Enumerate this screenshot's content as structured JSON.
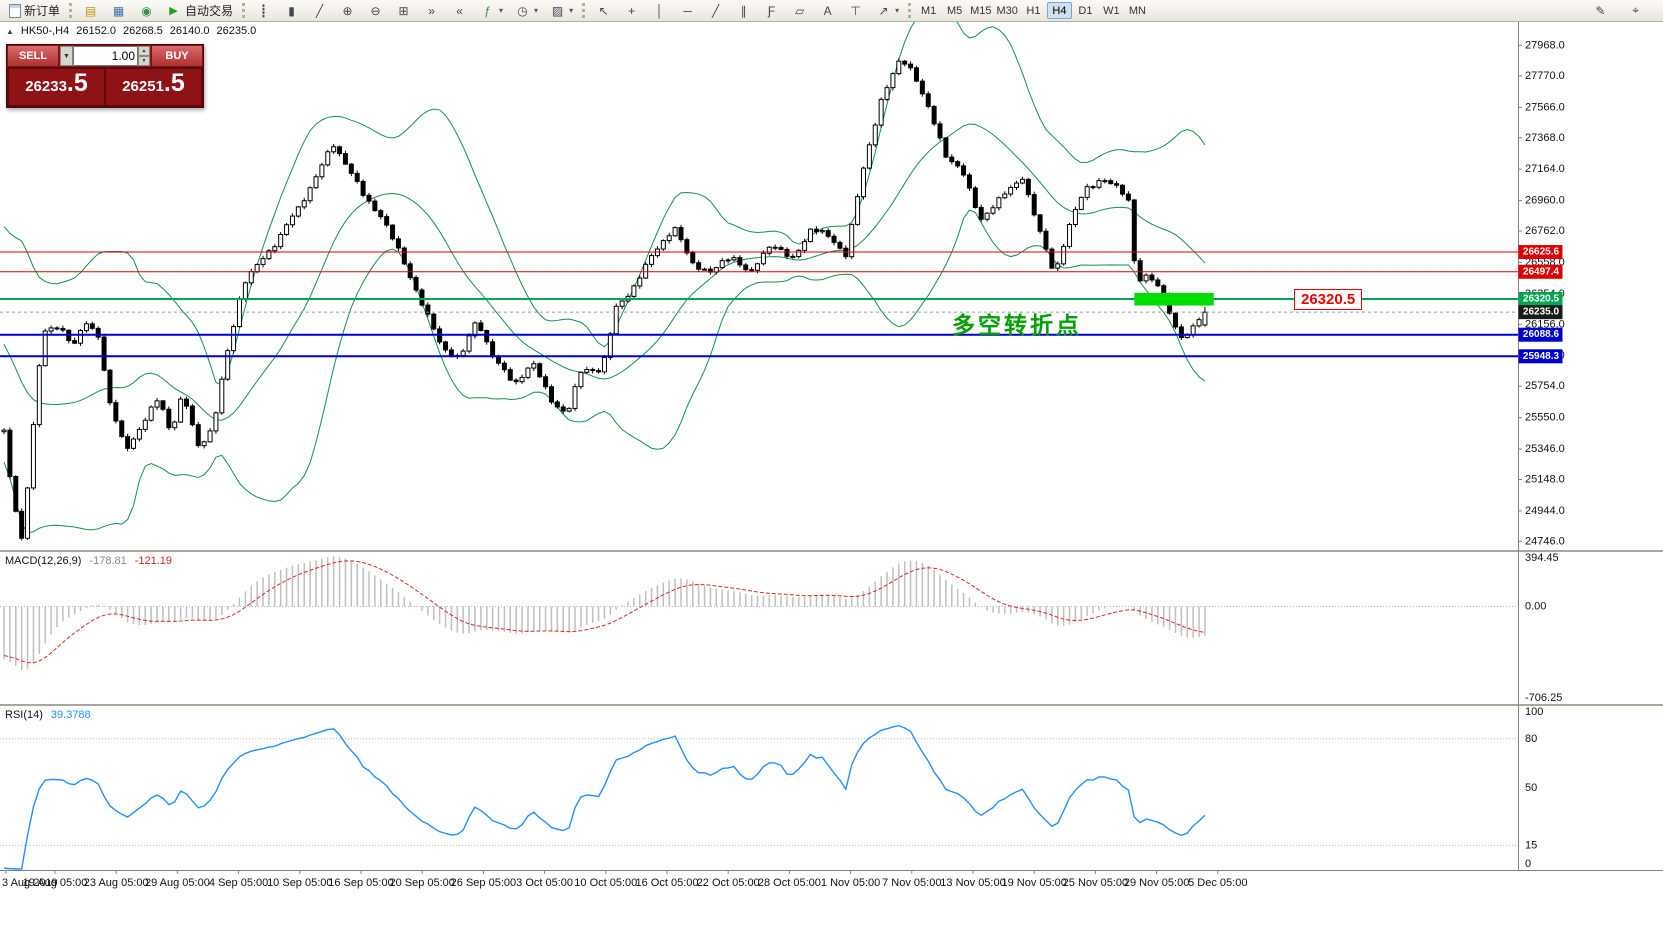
{
  "toolbar": {
    "new_order_label": "新订单",
    "autotrading_label": "自动交易",
    "autotrading_glyph": "▶",
    "dropdown_glyph": "▾",
    "window_icons": [
      {
        "name": "market-watch-icon",
        "glyph": "▤",
        "color": "#c8901a"
      },
      {
        "name": "data-window-icon",
        "glyph": "▦",
        "color": "#3a6fb0"
      },
      {
        "name": "navigator-icon",
        "glyph": "◉",
        "color": "#2f8f4e"
      }
    ],
    "chart_tools": [
      {
        "name": "bar-chart-icon",
        "glyph": "┋"
      },
      {
        "name": "candlestick-icon",
        "glyph": "▮"
      },
      {
        "name": "line-chart-icon",
        "glyph": "╱"
      },
      {
        "name": "zoom-in-icon",
        "glyph": "⊕"
      },
      {
        "name": "zoom-out-icon",
        "glyph": "⊖"
      },
      {
        "name": "tile-windows-icon",
        "glyph": "⊞"
      },
      {
        "name": "auto-scroll-icon",
        "glyph": "»"
      },
      {
        "name": "chart-shift-icon",
        "glyph": "«"
      },
      {
        "name": "indicators-icon",
        "glyph": "ƒ",
        "color": "#2f8f4e",
        "dropdown": true
      },
      {
        "name": "periods-icon",
        "glyph": "◷",
        "dropdown": true
      },
      {
        "name": "templates-icon",
        "glyph": "▨",
        "dropdown": true
      }
    ],
    "line_tools": [
      {
        "name": "cursor-icon",
        "glyph": "↖"
      },
      {
        "name": "crosshair-icon",
        "glyph": "+"
      },
      {
        "name": "vertical-line-icon",
        "glyph": "│"
      },
      {
        "name": "horizontal-line-icon",
        "glyph": "─"
      },
      {
        "name": "trendline-icon",
        "glyph": "╱"
      },
      {
        "name": "channel-icon",
        "glyph": "∥"
      },
      {
        "name": "fibonacci-icon",
        "glyph": "Ƒ"
      },
      {
        "name": "shapes-icon",
        "glyph": "▱"
      },
      {
        "name": "text-icon",
        "glyph": "A"
      },
      {
        "name": "text-label-icon",
        "glyph": "⊤"
      },
      {
        "name": "arrows-icon",
        "glyph": "↗",
        "dropdown": true
      }
    ],
    "timeframes": [
      {
        "label": "M1"
      },
      {
        "label": "M5"
      },
      {
        "label": "M15"
      },
      {
        "label": "M30"
      },
      {
        "label": "H1"
      },
      {
        "label": "H4",
        "active": true
      },
      {
        "label": "D1"
      },
      {
        "label": "W1"
      },
      {
        "label": "MN"
      }
    ],
    "right_icons": [
      {
        "name": "edit-cursor-icon",
        "glyph": "✎"
      },
      {
        "name": "target-cursor-icon",
        "glyph": "⌖"
      }
    ]
  },
  "chart_header": {
    "collapse_glyph": "▲",
    "symbol_period": "HK50-,H4",
    "open": "26152.0",
    "high": "26268.5",
    "low": "26140.0",
    "close": "26235.0"
  },
  "one_click": {
    "sell_label": "SELL",
    "buy_label": "BUY",
    "volume": "1.00",
    "volume_dd_glyph": "▼",
    "spin_up": "▲",
    "spin_down": "▼",
    "sell_price_main": "26233",
    "sell_price_frac": ".5",
    "buy_price_main": "26251",
    "buy_price_frac": ".5"
  },
  "annotations": {
    "turning_point_text": "多空转折点",
    "price_callout": "26320.5"
  },
  "macd_panel": {
    "label": "MACD(12,26,9)",
    "value_main": "-178.81",
    "value_signal": "-121.19",
    "axis": [
      "394.45",
      "0.00",
      "-706.25"
    ]
  },
  "rsi_panel": {
    "label": "RSI(14)",
    "value": "39.3788",
    "axis": [
      "100",
      "80",
      "50",
      "15",
      "0"
    ]
  },
  "price_axis": {
    "labels": [
      "27968.0",
      "27770.0",
      "27566.0",
      "27368.0",
      "27164.0",
      "26960.0",
      "26762.0",
      "26558.0",
      "26354.0",
      "26156.0",
      "25952.0",
      "25754.0",
      "25550.0",
      "25346.0",
      "25148.0",
      "24944.0",
      "24746.0"
    ]
  },
  "time_axis": {
    "labels": [
      "3 Aug 2019",
      "19 Aug 05:00",
      "23 Aug 05:00",
      "29 Aug 05:00",
      "4 Sep 05:00",
      "10 Sep 05:00",
      "16 Sep 05:00",
      "20 Sep 05:00",
      "26 Sep 05:00",
      "3 Oct 05:00",
      "10 Oct 05:00",
      "16 Oct 05:00",
      "22 Oct 05:00",
      "28 Oct 05:00",
      "1 Nov 05:00",
      "7 Nov 05:00",
      "13 Nov 05:00",
      "19 Nov 05:00",
      "25 Nov 05:00",
      "29 Nov 05:00",
      "5 Dec 05:00"
    ]
  },
  "colors": {
    "line_red": "#DD0000",
    "line_green": "#00A651",
    "line_blue": "#0000CC",
    "bollinger_green": "#0E9447",
    "macd_hist": "#BFBFBF",
    "macd_signal": "#D42A2A",
    "rsi_blue": "#1E90FF",
    "bid_tag": "#1A1A1A",
    "highlight_green": "#00DC00",
    "annotation_green": "#00A000",
    "callout_red": "#EE0000"
  },
  "chart_data": {
    "type": "candlestick",
    "symbol": "HK50-",
    "timeframe": "H4",
    "n_candles": 205,
    "warmup": 30,
    "candles_end_frac": 0.795,
    "price_top": 28120,
    "price_bottom": 24690,
    "last_candle": {
      "o": 26152.0,
      "h": 26268.5,
      "l": 26140.0,
      "c": 26235.0
    },
    "waypoints": [
      [
        0,
        25450
      ],
      [
        0.007,
        25050
      ],
      [
        0.015,
        24770
      ],
      [
        0.022,
        25300
      ],
      [
        0.032,
        26080
      ],
      [
        0.046,
        26150
      ],
      [
        0.058,
        26020
      ],
      [
        0.068,
        26180
      ],
      [
        0.079,
        26080
      ],
      [
        0.087,
        25650
      ],
      [
        0.101,
        25350
      ],
      [
        0.116,
        25520
      ],
      [
        0.129,
        25680
      ],
      [
        0.139,
        25440
      ],
      [
        0.149,
        25700
      ],
      [
        0.162,
        25380
      ],
      [
        0.174,
        25480
      ],
      [
        0.187,
        26000
      ],
      [
        0.199,
        26420
      ],
      [
        0.214,
        26580
      ],
      [
        0.228,
        26700
      ],
      [
        0.245,
        26900
      ],
      [
        0.261,
        27150
      ],
      [
        0.274,
        27320
      ],
      [
        0.286,
        27180
      ],
      [
        0.3,
        26980
      ],
      [
        0.315,
        26870
      ],
      [
        0.332,
        26560
      ],
      [
        0.349,
        26280
      ],
      [
        0.365,
        26010
      ],
      [
        0.38,
        25930
      ],
      [
        0.394,
        26180
      ],
      [
        0.408,
        25950
      ],
      [
        0.425,
        25760
      ],
      [
        0.44,
        25900
      ],
      [
        0.455,
        25680
      ],
      [
        0.469,
        25580
      ],
      [
        0.481,
        25850
      ],
      [
        0.498,
        25860
      ],
      [
        0.51,
        26280
      ],
      [
        0.527,
        26420
      ],
      [
        0.544,
        26650
      ],
      [
        0.558,
        26800
      ],
      [
        0.573,
        26550
      ],
      [
        0.589,
        26480
      ],
      [
        0.606,
        26620
      ],
      [
        0.622,
        26480
      ],
      [
        0.639,
        26680
      ],
      [
        0.656,
        26580
      ],
      [
        0.672,
        26780
      ],
      [
        0.689,
        26700
      ],
      [
        0.701,
        26620
      ],
      [
        0.715,
        27150
      ],
      [
        0.73,
        27600
      ],
      [
        0.747,
        27880
      ],
      [
        0.757,
        27820
      ],
      [
        0.77,
        27550
      ],
      [
        0.784,
        27250
      ],
      [
        0.798,
        27150
      ],
      [
        0.813,
        26850
      ],
      [
        0.83,
        26960
      ],
      [
        0.848,
        27120
      ],
      [
        0.863,
        26750
      ],
      [
        0.875,
        26480
      ],
      [
        0.888,
        26800
      ],
      [
        0.9,
        27050
      ],
      [
        0.913,
        27100
      ],
      [
        0.925,
        27050
      ],
      [
        0.936,
        26980
      ],
      [
        0.943,
        26420
      ],
      [
        0.954,
        26480
      ],
      [
        0.965,
        26380
      ],
      [
        0.975,
        26120
      ],
      [
        0.983,
        26030
      ],
      [
        0.992,
        26180
      ],
      [
        1,
        26235
      ]
    ],
    "bollinger": {
      "period": 20,
      "deviation": 2,
      "color": "#0E9447"
    },
    "horizontal_lines": [
      {
        "price": 26625.6,
        "color": "#DD0000",
        "width": 1
      },
      {
        "price": 26497.4,
        "color": "#DD0000",
        "width": 1
      },
      {
        "price": 26320.5,
        "color": "#00A651",
        "width": 2
      },
      {
        "price": 26088.6,
        "color": "#0000CC",
        "width": 2
      },
      {
        "price": 25948.3,
        "color": "#0000CC",
        "width": 2
      }
    ],
    "bid_line": {
      "price": 26235.0,
      "tag_color": "#1A1A1A"
    },
    "highlight_rect": {
      "i1": 192,
      "i2": 205.5,
      "price_top": 26360,
      "price_bottom": 26278,
      "color": "#00DC00"
    },
    "macd": {
      "fast": 12,
      "slow": 26,
      "signal": 9,
      "scale_max": 394.45,
      "scale_min": -706.25,
      "hist_color": "#BFBFBF",
      "signal_color": "#D42A2A"
    },
    "rsi": {
      "period": 14,
      "scale_max": 100,
      "scale_min": 0,
      "levels": [
        80,
        15
      ],
      "color": "#1E90FF"
    }
  }
}
